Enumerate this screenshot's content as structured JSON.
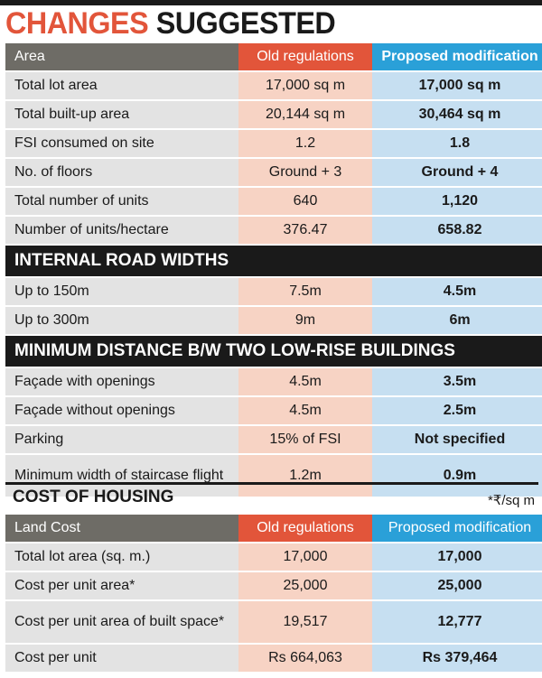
{
  "title": {
    "word1": "CHANGES",
    "word2": "SUGGESTED"
  },
  "colors": {
    "accent_orange": "#e2553a",
    "accent_blue": "#2aa0d8",
    "old_cell": "#f7d3c4",
    "new_cell": "#c6dff1",
    "label_cell": "#e3e3e3",
    "dark": "#1a1a1a"
  },
  "table1": {
    "header": [
      "Area",
      "Old regulations",
      "Proposed modification"
    ],
    "rows": [
      [
        "Total lot area",
        "17,000 sq m",
        "17,000 sq m"
      ],
      [
        "Total built-up area",
        "20,144 sq m",
        "30,464 sq m"
      ],
      [
        "FSI consumed on site",
        "1.2",
        "1.8"
      ],
      [
        "No. of floors",
        "Ground + 3",
        "Ground + 4"
      ],
      [
        "Total number of units",
        "640",
        "1,120"
      ],
      [
        "Number of units/hectare",
        "376.47",
        "658.82"
      ]
    ],
    "section_roads": "INTERNAL ROAD WIDTHS",
    "roads": [
      [
        "Up to 150m",
        "7.5m",
        "4.5m"
      ],
      [
        "Up to 300m",
        "9m",
        "6m"
      ]
    ],
    "section_distance": "MINIMUM DISTANCE B/W TWO LOW-RISE BUILDINGS",
    "distance": [
      [
        "Façade with openings",
        "4.5m",
        "3.5m"
      ],
      [
        "Façade without openings",
        "4.5m",
        "2.5m"
      ],
      [
        "Parking",
        "15% of FSI",
        "Not specified"
      ],
      [
        "Minimum width of staircase flight",
        "1.2m",
        "0.9m"
      ]
    ]
  },
  "cost": {
    "title": "COST OF HOUSING",
    "unit_note": "*₹/sq m",
    "header": [
      "Land Cost",
      "Old regulations",
      "Proposed modification"
    ],
    "rows": [
      [
        "Total lot area (sq. m.)",
        "17,000",
        "17,000"
      ],
      [
        "Cost per unit area*",
        "25,000",
        "25,000"
      ],
      [
        "Cost per unit area of built space*",
        "19,517",
        "12,777"
      ],
      [
        "Cost per unit",
        "Rs 664,063",
        "Rs 379,464"
      ]
    ]
  }
}
